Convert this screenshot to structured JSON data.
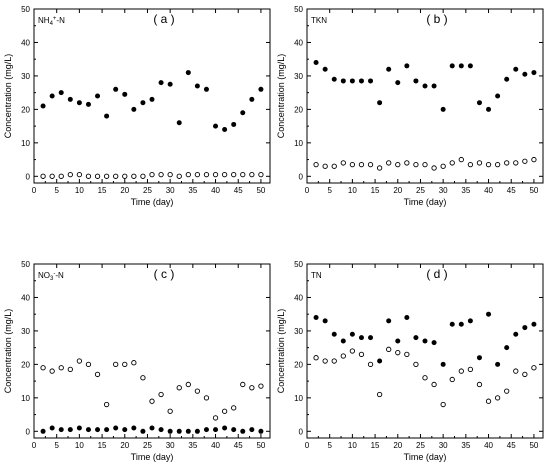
{
  "chart_data": [
    {
      "type": "scatter",
      "tag": "( a )",
      "title_main": "NH",
      "title_sub": "4",
      "title_sup": "+",
      "title_rest": "-N",
      "xlabel": "Time (day)",
      "ylabel": "Concentration (mg/L)",
      "xlim": [
        0,
        52
      ],
      "ylim": [
        -2,
        50
      ],
      "xticks": [
        "0",
        "5",
        "10",
        "15",
        "20",
        "25",
        "30",
        "35",
        "40",
        "45",
        "50"
      ],
      "yticks": [
        "0",
        "10",
        "20",
        "30",
        "40",
        "50"
      ],
      "x": [
        2,
        4,
        6,
        8,
        10,
        12,
        14,
        16,
        18,
        20,
        22,
        24,
        26,
        28,
        30,
        32,
        34,
        36,
        38,
        40,
        42,
        44,
        46,
        48,
        50
      ],
      "series": [
        {
          "marker": "filled",
          "values": [
            21,
            24,
            25,
            23,
            22,
            21.5,
            24,
            18,
            26,
            24.5,
            20,
            22,
            23,
            28,
            27.5,
            16,
            31,
            27,
            26,
            15,
            14,
            15.5,
            19,
            23,
            26
          ]
        },
        {
          "marker": "open",
          "values": [
            0,
            0,
            0,
            0.5,
            0.5,
            0,
            0,
            0,
            0,
            0,
            0,
            0,
            0.5,
            0.5,
            0.5,
            0,
            0.5,
            0.5,
            0.5,
            0.5,
            0.5,
            0.5,
            0.5,
            0.5,
            0.5
          ]
        }
      ]
    },
    {
      "type": "scatter",
      "tag": "( b )",
      "title_main": "TKN",
      "title_sub": "",
      "title_sup": "",
      "title_rest": "",
      "xlabel": "Time (day)",
      "ylabel": "Concentration (mg/L)",
      "xlim": [
        0,
        52
      ],
      "ylim": [
        -2,
        50
      ],
      "xticks": [
        "0",
        "5",
        "10",
        "15",
        "20",
        "25",
        "30",
        "35",
        "40",
        "45",
        "50"
      ],
      "yticks": [
        "0",
        "10",
        "20",
        "30",
        "40",
        "50"
      ],
      "x": [
        2,
        4,
        6,
        8,
        10,
        12,
        14,
        16,
        18,
        20,
        22,
        24,
        26,
        28,
        30,
        32,
        34,
        36,
        38,
        40,
        42,
        44,
        46,
        48,
        50
      ],
      "series": [
        {
          "marker": "filled",
          "values": [
            34,
            32,
            29,
            28.5,
            28.5,
            28.5,
            28.5,
            22,
            32,
            28,
            33,
            28.5,
            27,
            27,
            20,
            33,
            33,
            33,
            22,
            20,
            24,
            29,
            32,
            30.5,
            31
          ]
        },
        {
          "marker": "open",
          "values": [
            3.5,
            3,
            3,
            4,
            3.5,
            3.5,
            3.5,
            2.5,
            4,
            3.5,
            4,
            3.5,
            3.5,
            2.5,
            3,
            4,
            5,
            3.5,
            4,
            3.5,
            3.5,
            4,
            4,
            4.5,
            5
          ]
        }
      ]
    },
    {
      "type": "scatter",
      "tag": "( c )",
      "title_main": "NO",
      "title_sub": "3",
      "title_sup": "-",
      "title_rest": "-N",
      "xlabel": "Time (day)",
      "ylabel": "Concentration (mg/L)",
      "xlim": [
        0,
        52
      ],
      "ylim": [
        -2,
        50
      ],
      "xticks": [
        "0",
        "5",
        "10",
        "15",
        "20",
        "25",
        "30",
        "35",
        "40",
        "45",
        "50"
      ],
      "yticks": [
        "0",
        "10",
        "20",
        "30",
        "40",
        "50"
      ],
      "x": [
        2,
        4,
        6,
        8,
        10,
        12,
        14,
        16,
        18,
        20,
        22,
        24,
        26,
        28,
        30,
        32,
        34,
        36,
        38,
        40,
        42,
        44,
        46,
        48,
        50
      ],
      "series": [
        {
          "marker": "filled",
          "values": [
            0,
            1,
            0.5,
            0.5,
            1,
            0.5,
            0.5,
            0.5,
            1,
            0.5,
            1,
            0,
            1,
            0.5,
            0,
            0,
            0,
            0,
            0.5,
            0.5,
            1,
            0.5,
            0,
            0.5,
            0
          ]
        },
        {
          "marker": "open",
          "values": [
            19,
            18,
            19,
            18.5,
            21,
            20,
            17,
            8,
            20,
            20,
            20.5,
            16,
            9,
            11,
            6,
            13,
            14,
            12,
            10,
            4,
            6,
            7,
            14,
            13,
            13.5
          ]
        }
      ]
    },
    {
      "type": "scatter",
      "tag": "( d )",
      "title_main": "TN",
      "title_sub": "",
      "title_sup": "",
      "title_rest": "",
      "xlabel": "Time (day)",
      "ylabel": "Concentration (mg/L)",
      "xlim": [
        0,
        52
      ],
      "ylim": [
        -2,
        50
      ],
      "xticks": [
        "0",
        "5",
        "10",
        "15",
        "20",
        "25",
        "30",
        "35",
        "40",
        "45",
        "50"
      ],
      "yticks": [
        "0",
        "10",
        "20",
        "30",
        "40",
        "50"
      ],
      "x": [
        2,
        4,
        6,
        8,
        10,
        12,
        14,
        16,
        18,
        20,
        22,
        24,
        26,
        28,
        30,
        32,
        34,
        36,
        38,
        40,
        42,
        44,
        46,
        48,
        50
      ],
      "series": [
        {
          "marker": "filled",
          "values": [
            34,
            33,
            29,
            27,
            29,
            28,
            28,
            21,
            33,
            27,
            34,
            28,
            27,
            26.5,
            20,
            32,
            32,
            33,
            22,
            35,
            20,
            25,
            29,
            31,
            32
          ]
        },
        {
          "marker": "open",
          "values": [
            22,
            21,
            21,
            22.5,
            24,
            23,
            20,
            11,
            24.5,
            23.5,
            23,
            20,
            16,
            14,
            8,
            15.5,
            18,
            18.5,
            14,
            9,
            10,
            12,
            18,
            17,
            19
          ]
        }
      ]
    }
  ]
}
